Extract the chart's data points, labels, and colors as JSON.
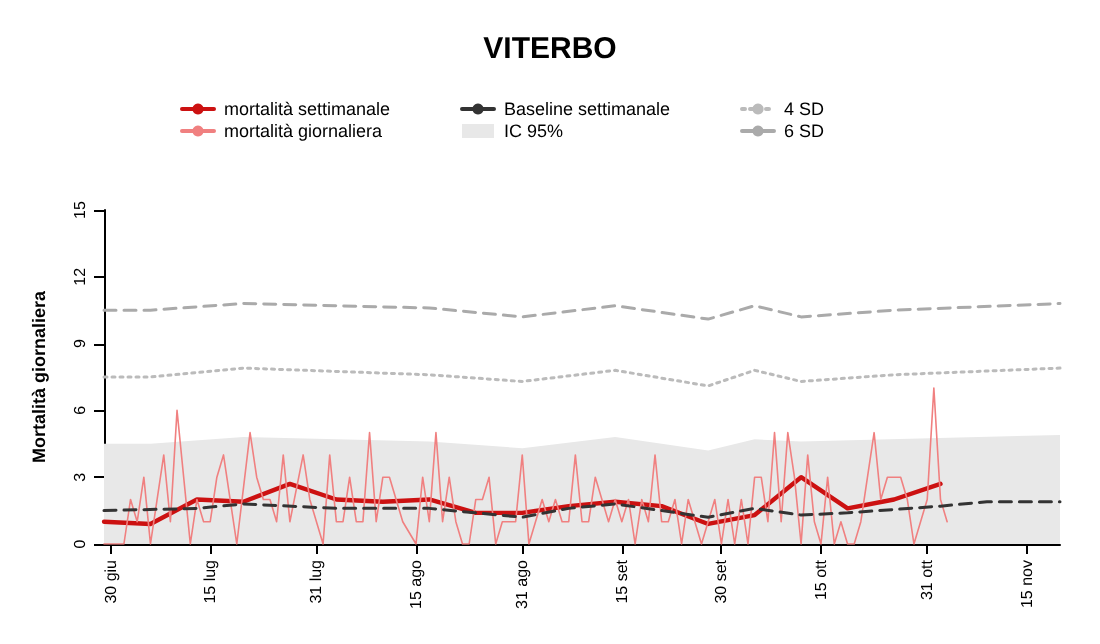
{
  "chart_data": {
    "type": "line",
    "title": "VITERBO",
    "ylabel": "Mortalità giornaliera",
    "xlim": [
      "--06-29",
      "--11-20"
    ],
    "xticks": [
      {
        "value": "--06-30",
        "label": "30 giu"
      },
      {
        "value": "--07-15",
        "label": "15 lug"
      },
      {
        "value": "--07-31",
        "label": "31 lug"
      },
      {
        "value": "--08-15",
        "label": "15 ago"
      },
      {
        "value": "--08-31",
        "label": "31 ago"
      },
      {
        "value": "--09-15",
        "label": "15 set"
      },
      {
        "value": "--09-30",
        "label": "30 set"
      },
      {
        "value": "--10-15",
        "label": "15 ott"
      },
      {
        "value": "--10-31",
        "label": "31 ott"
      },
      {
        "value": "--11-15",
        "label": "15 nov"
      }
    ],
    "ylim": [
      0,
      15
    ],
    "yticks": [
      0,
      3,
      6,
      9,
      12,
      15
    ],
    "legend": "top",
    "marker": "none",
    "series": [
      {
        "name": "mortalità settimanale",
        "color": "#cc1111",
        "line_style": "solid",
        "x": [
          "--06-29",
          "--07-06",
          "--07-13",
          "--07-20",
          "--07-27",
          "--08-03",
          "--08-10",
          "--08-17",
          "--08-24",
          "--08-31",
          "--09-07",
          "--09-14",
          "--09-21",
          "--09-28",
          "--10-05",
          "--10-12",
          "--10-19",
          "--10-26",
          "--11-02"
        ],
        "values": [
          1.0,
          0.9,
          2.0,
          1.9,
          2.7,
          2.0,
          1.9,
          2.0,
          1.4,
          1.4,
          1.7,
          1.9,
          1.7,
          0.9,
          1.3,
          3.0,
          1.6,
          2.0,
          2.7
        ]
      },
      {
        "name": "mortalità giornaliera",
        "color": "#f08080",
        "line_style": "solid",
        "x": [
          "--06-29",
          "--07-02",
          "--07-03",
          "--07-04",
          "--07-05",
          "--07-06",
          "--07-08",
          "--07-09",
          "--07-10",
          "--07-12",
          "--07-13",
          "--07-14",
          "--07-15",
          "--07-16",
          "--07-17",
          "--07-19",
          "--07-21",
          "--07-22",
          "--07-23",
          "--07-24",
          "--07-25",
          "--07-26",
          "--07-27",
          "--07-29",
          "--07-30",
          "--08-01",
          "--08-02",
          "--08-03",
          "--08-04",
          "--08-05",
          "--08-06",
          "--08-07",
          "--08-08",
          "--08-09",
          "--08-10",
          "--08-11",
          "--08-13",
          "--08-15",
          "--08-16",
          "--08-17",
          "--08-18",
          "--08-19",
          "--08-20",
          "--08-21",
          "--08-22",
          "--08-23",
          "--08-24",
          "--08-25",
          "--08-26",
          "--08-27",
          "--08-28",
          "--08-29",
          "--08-30",
          "--08-31",
          "--09-01",
          "--09-02",
          "--09-03",
          "--09-04",
          "--09-05",
          "--09-06",
          "--09-07",
          "--09-08",
          "--09-09",
          "--09-10",
          "--09-11",
          "--09-12",
          "--09-13",
          "--09-14",
          "--09-15",
          "--09-16",
          "--09-17",
          "--09-18",
          "--09-19",
          "--09-20",
          "--09-21",
          "--09-22",
          "--09-23",
          "--09-24",
          "--09-25",
          "--09-26",
          "--09-27",
          "--09-28",
          "--09-29",
          "--09-30",
          "--10-01",
          "--10-02",
          "--10-03",
          "--10-04",
          "--10-05",
          "--10-06",
          "--10-07",
          "--10-08",
          "--10-09",
          "--10-10",
          "--10-11",
          "--10-12",
          "--10-13",
          "--10-14",
          "--10-15",
          "--10-16",
          "--10-17",
          "--10-18",
          "--10-19",
          "--10-20",
          "--10-21",
          "--10-22",
          "--10-23",
          "--10-24",
          "--10-25",
          "--10-26",
          "--10-27",
          "--10-28",
          "--10-29",
          "--10-31",
          "--11-01",
          "--11-02",
          "--11-03"
        ],
        "values": [
          0,
          0,
          2,
          1,
          3,
          0,
          4,
          1,
          6,
          0,
          2,
          1,
          1,
          3,
          4,
          0,
          5,
          3,
          2,
          2,
          1,
          4,
          1,
          4,
          2,
          0,
          4,
          1,
          1,
          3,
          1,
          1,
          5,
          1,
          3,
          3,
          1,
          0,
          3,
          1,
          5,
          1,
          3,
          1,
          0,
          0,
          2,
          2,
          3,
          0,
          1,
          1,
          1,
          4,
          0,
          1,
          2,
          1,
          2,
          1,
          1,
          4,
          1,
          1,
          3,
          2,
          1,
          2,
          1,
          2,
          0,
          2,
          1,
          4,
          1,
          1,
          2,
          0,
          2,
          1,
          0,
          1,
          2,
          0,
          2,
          0,
          2,
          0,
          3,
          3,
          1,
          5,
          1,
          5,
          3,
          0,
          4,
          1,
          0,
          3,
          0,
          1,
          0,
          0,
          1,
          3,
          5,
          2,
          3,
          3,
          3,
          2,
          0,
          2,
          7,
          2,
          1
        ]
      },
      {
        "name": "Baseline settimanale",
        "color": "#333333",
        "line_style": "dashed",
        "x": [
          "--06-29",
          "--07-13",
          "--07-20",
          "--08-03",
          "--08-17",
          "--08-31",
          "--09-07",
          "--09-14",
          "--09-28",
          "--10-05",
          "--10-12",
          "--10-19",
          "--11-02",
          "--11-09",
          "--11-20"
        ],
        "values": [
          1.5,
          1.6,
          1.8,
          1.6,
          1.6,
          1.2,
          1.6,
          1.8,
          1.2,
          1.6,
          1.3,
          1.4,
          1.7,
          1.9,
          1.9
        ]
      },
      {
        "name": "IC 95%",
        "type": "area",
        "color": "#e8e8e8",
        "x": [
          "--06-29",
          "--07-06",
          "--07-20",
          "--08-17",
          "--08-31",
          "--09-14",
          "--09-28",
          "--10-05",
          "--10-12",
          "--11-20"
        ],
        "values": [
          4.5,
          4.5,
          4.8,
          4.6,
          4.3,
          4.8,
          4.2,
          4.7,
          4.6,
          4.9
        ]
      },
      {
        "name": "4 SD",
        "color": "#bbbbbb",
        "line_style": "dotted",
        "x": [
          "--06-29",
          "--07-06",
          "--07-20",
          "--08-17",
          "--08-31",
          "--09-14",
          "--09-28",
          "--10-05",
          "--10-12",
          "--10-26",
          "--11-20"
        ],
        "values": [
          7.5,
          7.5,
          7.9,
          7.6,
          7.3,
          7.8,
          7.1,
          7.8,
          7.3,
          7.6,
          7.9
        ]
      },
      {
        "name": "6 SD",
        "color": "#aaaaaa",
        "line_style": "dashed",
        "x": [
          "--06-29",
          "--07-06",
          "--07-20",
          "--08-17",
          "--08-31",
          "--09-14",
          "--09-28",
          "--10-05",
          "--10-12",
          "--10-26",
          "--11-20"
        ],
        "values": [
          10.5,
          10.5,
          10.8,
          10.6,
          10.2,
          10.7,
          10.1,
          10.7,
          10.2,
          10.5,
          10.8
        ]
      }
    ]
  }
}
